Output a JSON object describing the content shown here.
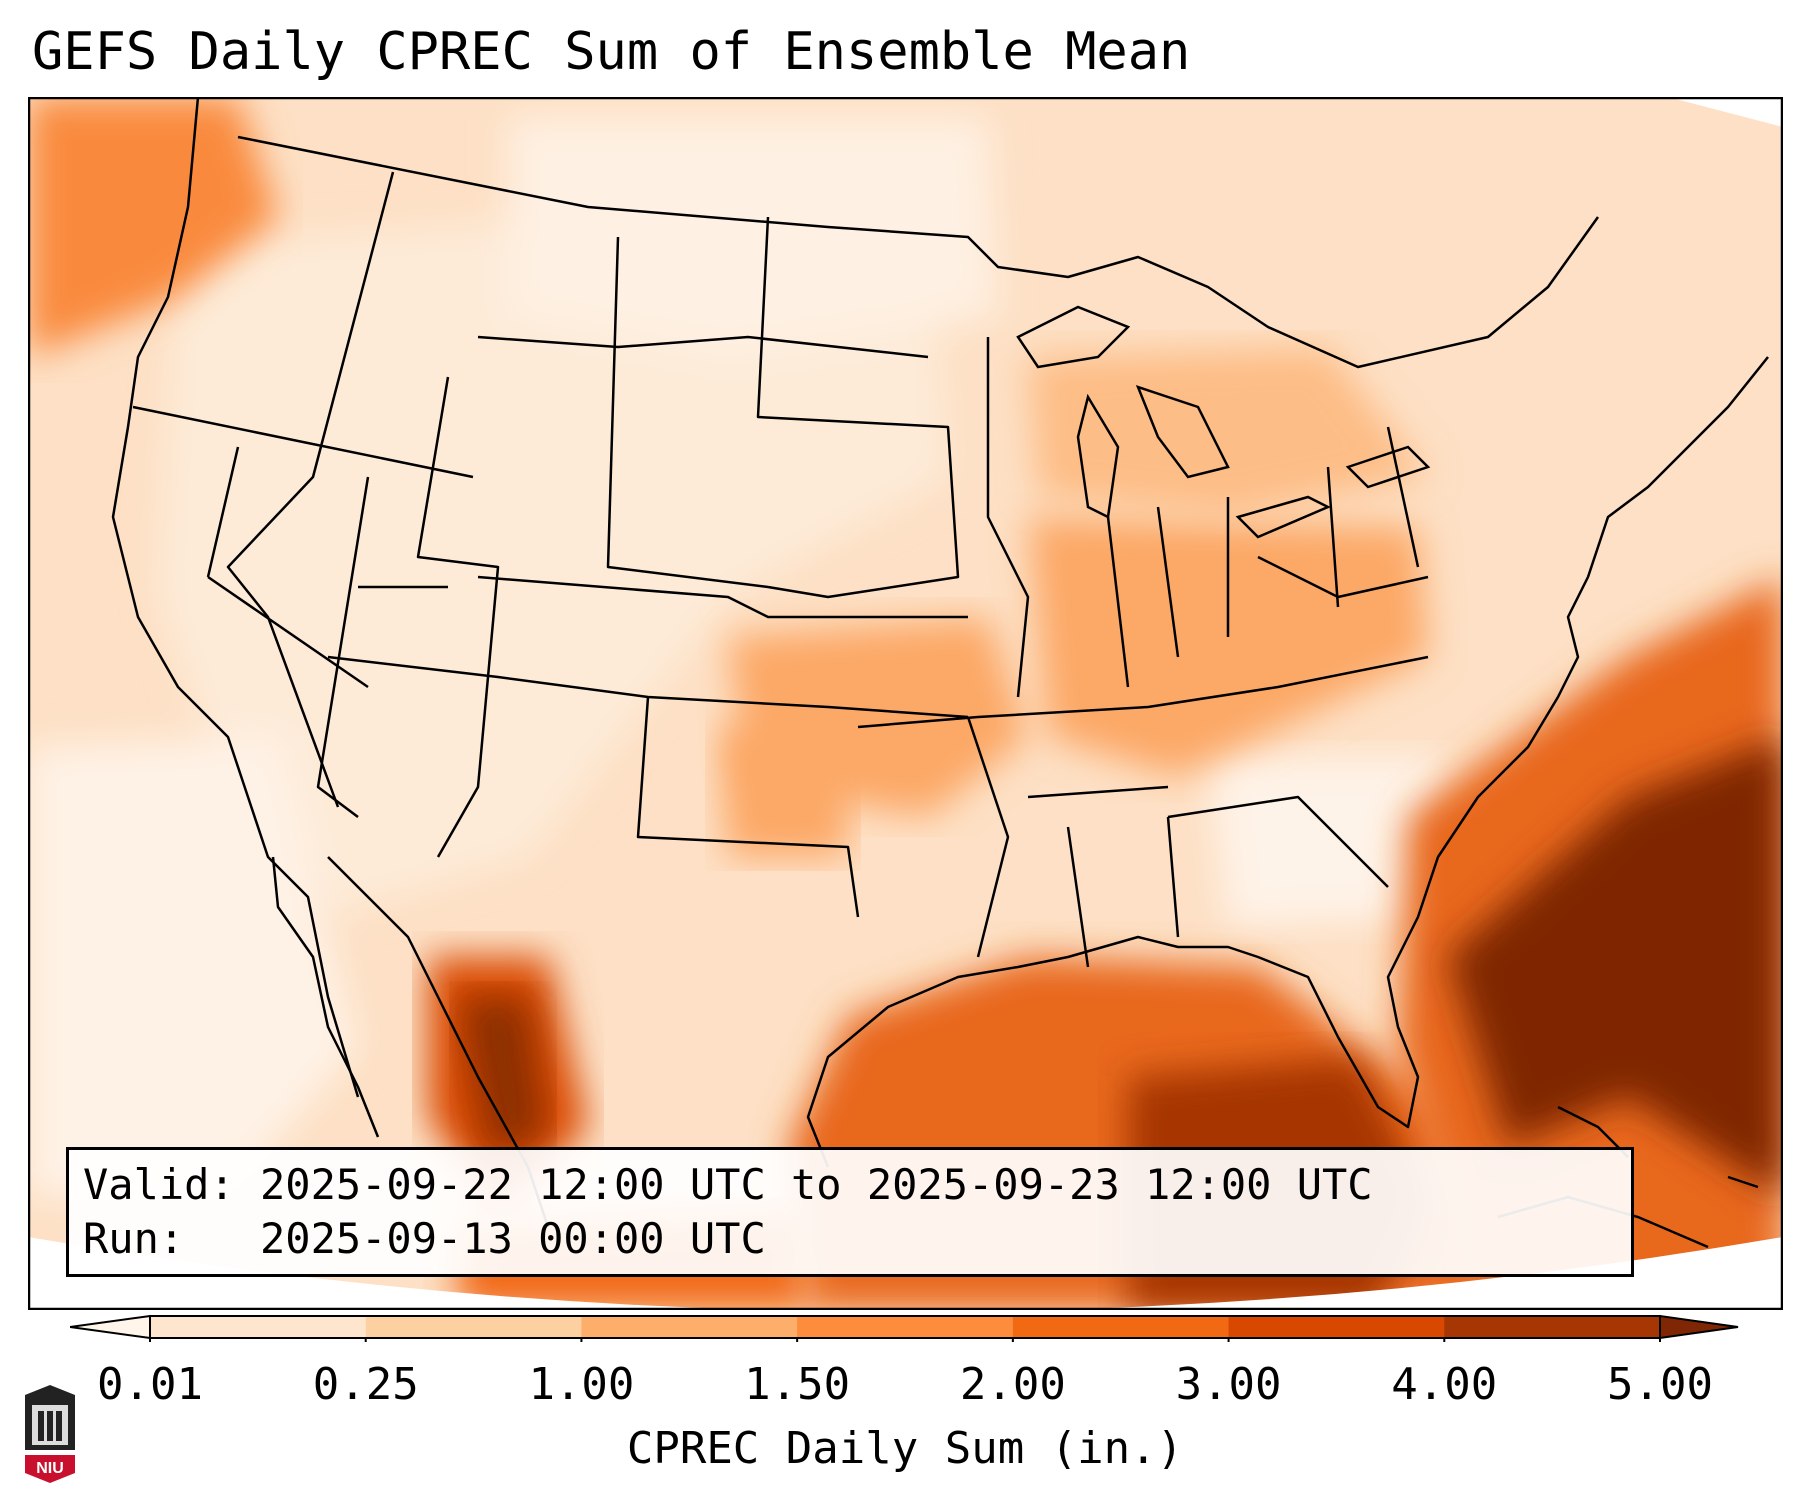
{
  "title": "GEFS Daily CPREC Sum of Ensemble Mean",
  "info": {
    "valid_line": "Valid: 2025-09-22 12:00 UTC to 2025-09-23 12:00 UTC",
    "run_line": "Run:   2025-09-13 00:00 UTC"
  },
  "colorbar": {
    "label": "CPREC Daily Sum (in.)",
    "ticks": [
      "0.01",
      "0.25",
      "1.00",
      "1.50",
      "2.00",
      "3.00",
      "4.00",
      "5.00"
    ],
    "colors": {
      "under": "#fff5eb",
      "bins": [
        "#fee6ce",
        "#fdd0a2",
        "#fdae6b",
        "#fd8d3c",
        "#f16913",
        "#d94801",
        "#a63603"
      ],
      "over": "#7f2704"
    }
  },
  "logo": {
    "text": "NIU",
    "name": "niu-logo"
  },
  "regions": [
    {
      "name": "gulf-of-mexico-precip",
      "level": 6
    },
    {
      "name": "atlantic-precip",
      "level": 7
    },
    {
      "name": "sierra-madre-precip",
      "level": 6
    },
    {
      "name": "central-plains-precip",
      "level": 4
    },
    {
      "name": "ohio-valley-precip",
      "level": 4
    },
    {
      "name": "pacific-northwest-precip",
      "level": 4
    }
  ]
}
